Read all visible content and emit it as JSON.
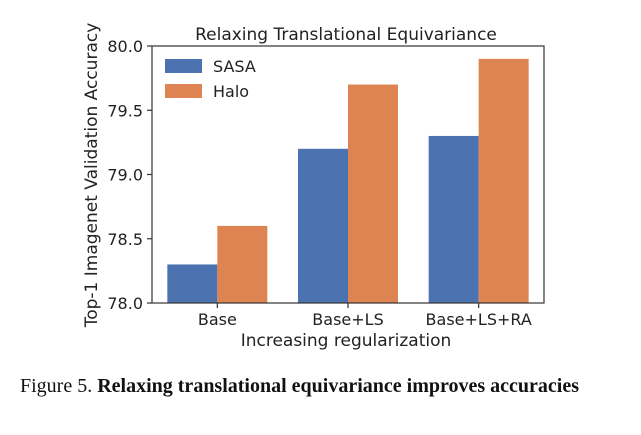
{
  "chart_data": {
    "type": "bar",
    "title": "Relaxing Translational Equivariance",
    "xlabel": "Increasing regularization",
    "ylabel": "Top-1 Imagenet Validation Accuracy",
    "categories": [
      "Base",
      "Base+LS",
      "Base+LS+RA"
    ],
    "series": [
      {
        "name": "SASA",
        "values": [
          78.3,
          79.2,
          79.3
        ],
        "color": "#4C72B0"
      },
      {
        "name": "Halo",
        "values": [
          78.6,
          79.7,
          79.9
        ],
        "color": "#DD8452"
      }
    ],
    "ylim": [
      78.0,
      80.0
    ],
    "yticks": [
      "78.0",
      "78.5",
      "79.0",
      "79.5",
      "80.0"
    ],
    "grid": false,
    "legend_position": "top-left"
  },
  "caption": {
    "prefix": "Figure 5.",
    "text": "Relaxing translational equivariance improves accuracies"
  }
}
